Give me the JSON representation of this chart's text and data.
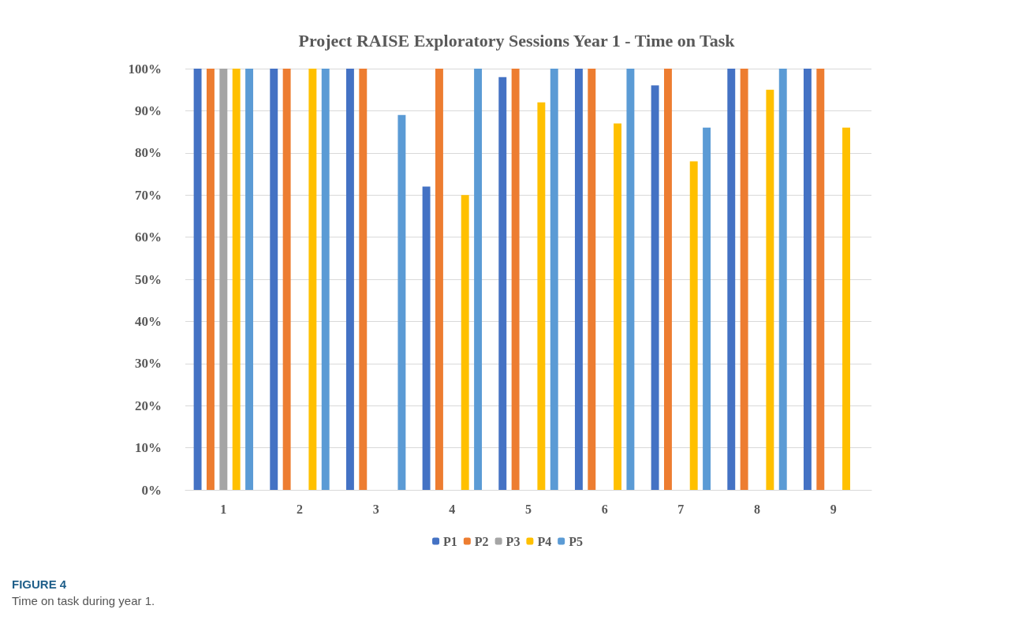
{
  "chart_data": {
    "type": "bar",
    "title": "Project RAISE Exploratory Sessions Year 1 - Time on Task",
    "categories": [
      "1",
      "2",
      "3",
      "4",
      "5",
      "6",
      "7",
      "8",
      "9"
    ],
    "series": [
      {
        "name": "P1",
        "color": "#4472c4",
        "values": [
          100,
          100,
          100,
          72,
          98,
          100,
          96,
          100,
          100
        ]
      },
      {
        "name": "P2",
        "color": "#ed7d31",
        "values": [
          100,
          100,
          100,
          100,
          100,
          100,
          100,
          100,
          100
        ]
      },
      {
        "name": "P3",
        "color": "#a5a5a5",
        "values": [
          100,
          null,
          null,
          null,
          null,
          null,
          null,
          null,
          null
        ]
      },
      {
        "name": "P4",
        "color": "#ffc000",
        "values": [
          100,
          100,
          null,
          70,
          92,
          87,
          78,
          95,
          86
        ]
      },
      {
        "name": "P5",
        "color": "#5b9bd5",
        "values": [
          100,
          100,
          89,
          100,
          100,
          100,
          86,
          100,
          null
        ]
      }
    ],
    "ylim": [
      0,
      100
    ],
    "yticks": [
      {
        "value": 0,
        "label": "0%"
      },
      {
        "value": 10,
        "label": "10%"
      },
      {
        "value": 20,
        "label": "20%"
      },
      {
        "value": 30,
        "label": "30%"
      },
      {
        "value": 40,
        "label": "40%"
      },
      {
        "value": 50,
        "label": "50%"
      },
      {
        "value": 60,
        "label": "60%"
      },
      {
        "value": 70,
        "label": "70%"
      },
      {
        "value": 80,
        "label": "80%"
      },
      {
        "value": 90,
        "label": "90%"
      },
      {
        "value": 100,
        "label": "100%"
      }
    ],
    "grid": "y",
    "legend": "bottom",
    "annotations": [
      "FIGURE 4",
      "Time on task during year 1."
    ]
  }
}
